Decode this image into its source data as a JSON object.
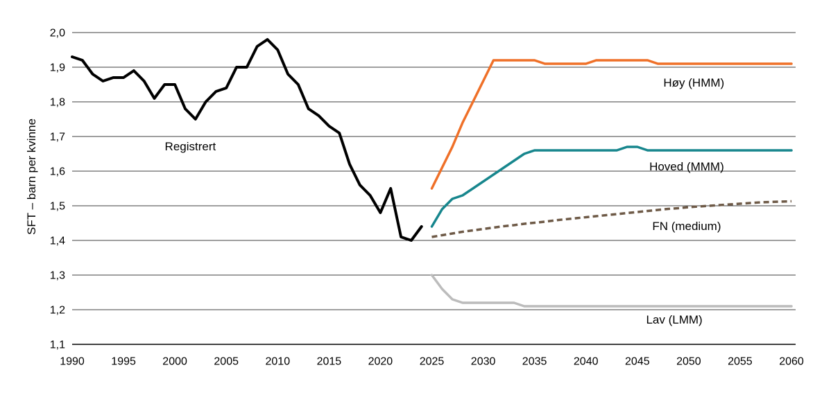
{
  "chart_data": {
    "type": "line",
    "ylabel": "SFT – barn per kvinne",
    "ylim": [
      1.1,
      2.0
    ],
    "xlim": [
      1990,
      2060
    ],
    "grid": "horizontal",
    "grid_color": "#3f3f3f",
    "axis_color": "#000000",
    "background_color": "#ffffff",
    "legend": "inline-labels",
    "yticks": [
      {
        "value": 2.0,
        "label": "2,0"
      },
      {
        "value": 1.9,
        "label": "1,9"
      },
      {
        "value": 1.8,
        "label": "1,8"
      },
      {
        "value": 1.7,
        "label": "1,7"
      },
      {
        "value": 1.6,
        "label": "1,6"
      },
      {
        "value": 1.5,
        "label": "1,5"
      },
      {
        "value": 1.4,
        "label": "1,4"
      },
      {
        "value": 1.3,
        "label": "1,3"
      },
      {
        "value": 1.2,
        "label": "1,2"
      },
      {
        "value": 1.1,
        "label": "1,1"
      }
    ],
    "xticks": [
      1990,
      1995,
      2000,
      2005,
      2010,
      2015,
      2020,
      2025,
      2030,
      2035,
      2040,
      2045,
      2050,
      2055,
      2060
    ],
    "series": [
      {
        "id": "registrert",
        "name": "Registrert",
        "color": "#000000",
        "style": "solid",
        "width": 4,
        "start_year": 1990,
        "values": [
          1.93,
          1.92,
          1.88,
          1.86,
          1.87,
          1.87,
          1.89,
          1.86,
          1.81,
          1.85,
          1.85,
          1.78,
          1.75,
          1.8,
          1.83,
          1.84,
          1.9,
          1.9,
          1.96,
          1.98,
          1.95,
          1.88,
          1.85,
          1.78,
          1.76,
          1.73,
          1.71,
          1.62,
          1.56,
          1.53,
          1.48,
          1.55,
          1.41,
          1.4,
          1.44
        ]
      },
      {
        "id": "lav-lmm",
        "name": "Lav (LMM)",
        "color": "#bcbcbc",
        "style": "solid",
        "width": 3.5,
        "start_year": 2025,
        "values": [
          1.3,
          1.26,
          1.23,
          1.22,
          1.22,
          1.22,
          1.22,
          1.22,
          1.22,
          1.21,
          1.21,
          1.21,
          1.21,
          1.21,
          1.21,
          1.21,
          1.21,
          1.21,
          1.21,
          1.21,
          1.21,
          1.21,
          1.21,
          1.21,
          1.21,
          1.21,
          1.21,
          1.21,
          1.21,
          1.21,
          1.21,
          1.21,
          1.21,
          1.21,
          1.21,
          1.21
        ]
      },
      {
        "id": "fn-medium",
        "name": "FN (medium)",
        "color": "#6e5a47",
        "style": "dashed",
        "width": 3.5,
        "start_year": 2025,
        "values": [
          1.41,
          1.415,
          1.42,
          1.425,
          1.429,
          1.433,
          1.437,
          1.441,
          1.444,
          1.448,
          1.451,
          1.454,
          1.458,
          1.461,
          1.464,
          1.467,
          1.47,
          1.473,
          1.476,
          1.479,
          1.482,
          1.485,
          1.488,
          1.491,
          1.493,
          1.496,
          1.498,
          1.5,
          1.502,
          1.504,
          1.506,
          1.508,
          1.51,
          1.511,
          1.512,
          1.513
        ]
      },
      {
        "id": "hoved-mmm",
        "name": "Hoved (MMM)",
        "color": "#17868d",
        "style": "solid",
        "width": 3.5,
        "start_year": 2025,
        "values": [
          1.44,
          1.49,
          1.52,
          1.53,
          1.55,
          1.57,
          1.59,
          1.61,
          1.63,
          1.65,
          1.66,
          1.66,
          1.66,
          1.66,
          1.66,
          1.66,
          1.66,
          1.66,
          1.66,
          1.67,
          1.67,
          1.66,
          1.66,
          1.66,
          1.66,
          1.66,
          1.66,
          1.66,
          1.66,
          1.66,
          1.66,
          1.66,
          1.66,
          1.66,
          1.66,
          1.66
        ]
      },
      {
        "id": "hoy-hmm",
        "name": "Høy (HMM)",
        "color": "#ef7028",
        "style": "solid",
        "width": 3.5,
        "start_year": 2025,
        "values": [
          1.55,
          1.61,
          1.67,
          1.74,
          1.8,
          1.86,
          1.92,
          1.92,
          1.92,
          1.92,
          1.92,
          1.91,
          1.91,
          1.91,
          1.91,
          1.91,
          1.92,
          1.92,
          1.92,
          1.92,
          1.92,
          1.92,
          1.91,
          1.91,
          1.91,
          1.91,
          1.91,
          1.91,
          1.91,
          1.91,
          1.91,
          1.91,
          1.91,
          1.91,
          1.91,
          1.91
        ]
      }
    ],
    "annotations": [
      {
        "id": "registrert",
        "label": "Registrert",
        "year": 2001.5,
        "value": 1.672
      },
      {
        "id": "hoy-hmm",
        "label": "Høy (HMM)",
        "year": 2050.5,
        "value": 1.856
      },
      {
        "id": "hoved-mmm",
        "label": "Hoved (MMM)",
        "year": 2049.8,
        "value": 1.614
      },
      {
        "id": "fn-medium",
        "label": "FN (medium)",
        "year": 2049.8,
        "value": 1.442
      },
      {
        "id": "lav-lmm",
        "label": "Lav (LMM)",
        "year": 2048.6,
        "value": 1.172
      }
    ]
  }
}
